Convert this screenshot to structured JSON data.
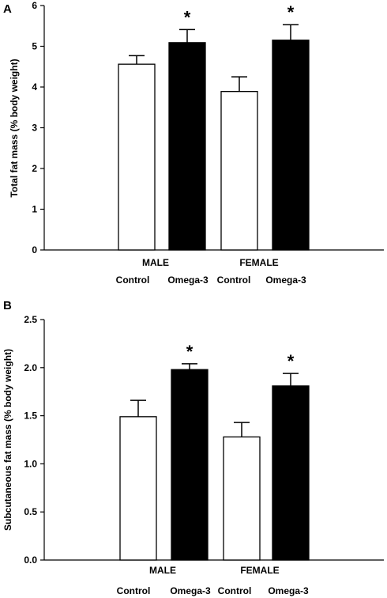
{
  "chart_data": [
    {
      "panel": "A",
      "type": "bar",
      "ylabel": "Total fat mass (% body weight)",
      "ylim": [
        0,
        6
      ],
      "yticks": [
        "0",
        "1",
        "2",
        "3",
        "4",
        "5",
        "6"
      ],
      "groups": [
        "MALE",
        "FEMALE"
      ],
      "series": [
        {
          "name": "Control",
          "values": [
            4.56,
            3.89
          ],
          "errors": [
            0.21,
            0.36
          ],
          "color": "#ffffff"
        },
        {
          "name": "Omega-3",
          "values": [
            5.09,
            5.15
          ],
          "errors": [
            0.32,
            0.38
          ],
          "color": "#000000"
        }
      ],
      "significance": [
        {
          "group": "MALE",
          "series": "Omega-3",
          "label": "*"
        },
        {
          "group": "FEMALE",
          "series": "Omega-3",
          "label": "*"
        }
      ]
    },
    {
      "panel": "B",
      "type": "bar",
      "ylabel": "Subcutaneous fat mass (% body weight)",
      "ylim": [
        0,
        2.5
      ],
      "yticks": [
        "0.0",
        "0.5",
        "1.0",
        "1.5",
        "2.0",
        "2.5"
      ],
      "groups": [
        "MALE",
        "FEMALE"
      ],
      "series": [
        {
          "name": "Control",
          "values": [
            1.49,
            1.28
          ],
          "errors": [
            0.17,
            0.15
          ],
          "color": "#ffffff"
        },
        {
          "name": "Omega-3",
          "values": [
            1.98,
            1.81
          ],
          "errors": [
            0.06,
            0.13
          ],
          "color": "#000000"
        }
      ],
      "significance": [
        {
          "group": "MALE",
          "series": "Omega-3",
          "label": "*"
        },
        {
          "group": "FEMALE",
          "series": "Omega-3",
          "label": "*"
        }
      ]
    }
  ]
}
